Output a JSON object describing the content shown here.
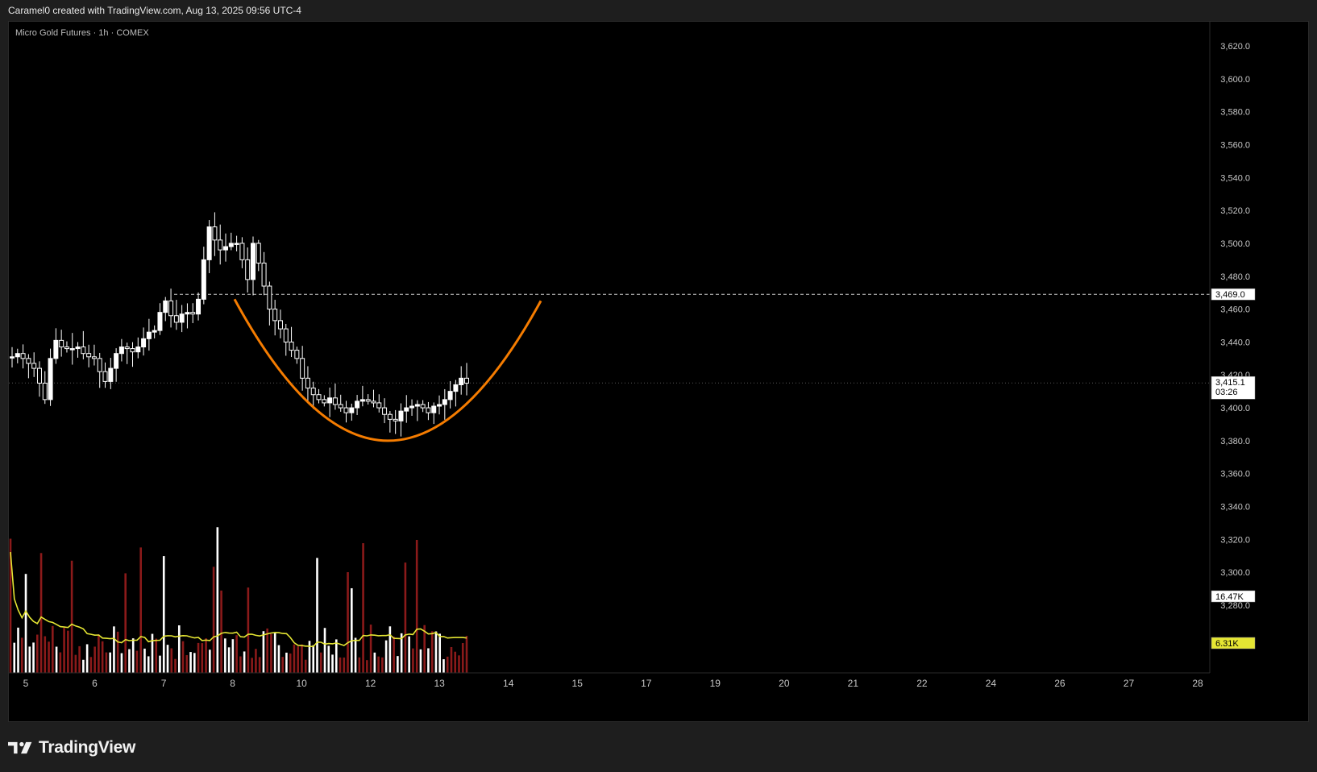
{
  "header": {
    "text": "Caramel0 created with TradingView.com, Aug 13, 2025 09:56 UTC-4"
  },
  "symbol": {
    "label": "Micro Gold Futures · 1h · COMEX"
  },
  "footer": {
    "brand": "TradingView"
  },
  "colors": {
    "background": "#000000",
    "candle_up": "#ffffff",
    "candle_down": "#ffffff",
    "volume_up": "#ffffff",
    "volume_down": "#8b1a1a",
    "volume_ma": "#e5e633",
    "drawing_curve": "#f57c00",
    "dashed_level": "#cfcfcf"
  },
  "chart_data": {
    "type": "candlestick",
    "price_axis": {
      "ticks": [
        "3,620.0",
        "3,600.0",
        "3,580.0",
        "3,560.0",
        "3,540.0",
        "3,520.0",
        "3,500.0",
        "3,480.0",
        "3,460.0",
        "3,440.0",
        "3,420.0",
        "3,400.0",
        "3,380.0",
        "3,360.0",
        "3,340.0",
        "3,320.0",
        "3,300.0",
        "3,280.0"
      ],
      "tick_values": [
        3620,
        3600,
        3580,
        3560,
        3540,
        3520,
        3500,
        3480,
        3460,
        3440,
        3420,
        3400,
        3380,
        3360,
        3340,
        3320,
        3300,
        3280
      ],
      "ylim": [
        3260,
        3630
      ]
    },
    "time_axis": {
      "labels": [
        "5",
        "6",
        "7",
        "8",
        "10",
        "12",
        "13",
        "14",
        "15",
        "17",
        "19",
        "20",
        "21",
        "22",
        "24",
        "26",
        "27",
        "28"
      ]
    },
    "price_labels": {
      "level": "3,469.0",
      "level_value": 3469,
      "last_price": "3,415.1",
      "last_value": 3415.1,
      "countdown": "03:26",
      "volume_last": "16.47K",
      "volume_ma": "6.31K"
    },
    "price_path": [
      [
        0,
        3431
      ],
      [
        1,
        3433
      ],
      [
        2,
        3430
      ],
      [
        3,
        3427
      ],
      [
        4,
        3424
      ],
      [
        5,
        3415
      ],
      [
        6,
        3405
      ],
      [
        7,
        3430
      ],
      [
        8,
        3441
      ],
      [
        9,
        3437
      ],
      [
        10,
        3436
      ],
      [
        11,
        3436
      ],
      [
        12,
        3437
      ],
      [
        13,
        3433
      ],
      [
        14,
        3431
      ],
      [
        15,
        3430
      ],
      [
        16,
        3422
      ],
      [
        17,
        3416
      ],
      [
        18,
        3424
      ],
      [
        19,
        3433
      ],
      [
        20,
        3437
      ],
      [
        21,
        3436
      ],
      [
        22,
        3434
      ],
      [
        23,
        3437
      ],
      [
        24,
        3442
      ],
      [
        25,
        3446
      ],
      [
        26,
        3447
      ],
      [
        27,
        3458
      ],
      [
        28,
        3465
      ],
      [
        29,
        3456
      ],
      [
        30,
        3452
      ],
      [
        31,
        3457
      ],
      [
        32,
        3458
      ],
      [
        33,
        3457
      ],
      [
        34,
        3466
      ],
      [
        35,
        3490
      ],
      [
        36,
        3510
      ],
      [
        37,
        3502
      ],
      [
        38,
        3496
      ],
      [
        39,
        3498
      ],
      [
        40,
        3500
      ],
      [
        41,
        3500
      ],
      [
        42,
        3490
      ],
      [
        43,
        3478
      ],
      [
        44,
        3500
      ],
      [
        45,
        3488
      ],
      [
        46,
        3474
      ],
      [
        47,
        3460
      ],
      [
        48,
        3453
      ],
      [
        49,
        3448
      ],
      [
        50,
        3440
      ],
      [
        51,
        3435
      ],
      [
        52,
        3430
      ],
      [
        53,
        3418
      ],
      [
        54,
        3412
      ],
      [
        55,
        3408
      ],
      [
        56,
        3405
      ],
      [
        57,
        3403
      ],
      [
        58,
        3406
      ],
      [
        59,
        3402
      ],
      [
        60,
        3400
      ],
      [
        61,
        3397
      ],
      [
        62,
        3400
      ],
      [
        63,
        3404
      ],
      [
        64,
        3405
      ],
      [
        65,
        3404
      ],
      [
        66,
        3403
      ],
      [
        67,
        3400
      ],
      [
        68,
        3396
      ],
      [
        69,
        3393
      ],
      [
        70,
        3392
      ],
      [
        71,
        3398
      ],
      [
        72,
        3400
      ],
      [
        73,
        3401
      ],
      [
        74,
        3402
      ],
      [
        75,
        3400
      ],
      [
        76,
        3397
      ],
      [
        77,
        3401
      ],
      [
        78,
        3402
      ],
      [
        79,
        3405
      ],
      [
        80,
        3410
      ],
      [
        81,
        3414
      ],
      [
        82,
        3418
      ],
      [
        83,
        3415
      ]
    ],
    "curve": {
      "type": "arc",
      "start": [
        0,
        3466
      ],
      "bottom": [
        0.5,
        3380
      ],
      "end": [
        1,
        3465
      ]
    },
    "volume": {
      "ma_period": 20
    }
  }
}
